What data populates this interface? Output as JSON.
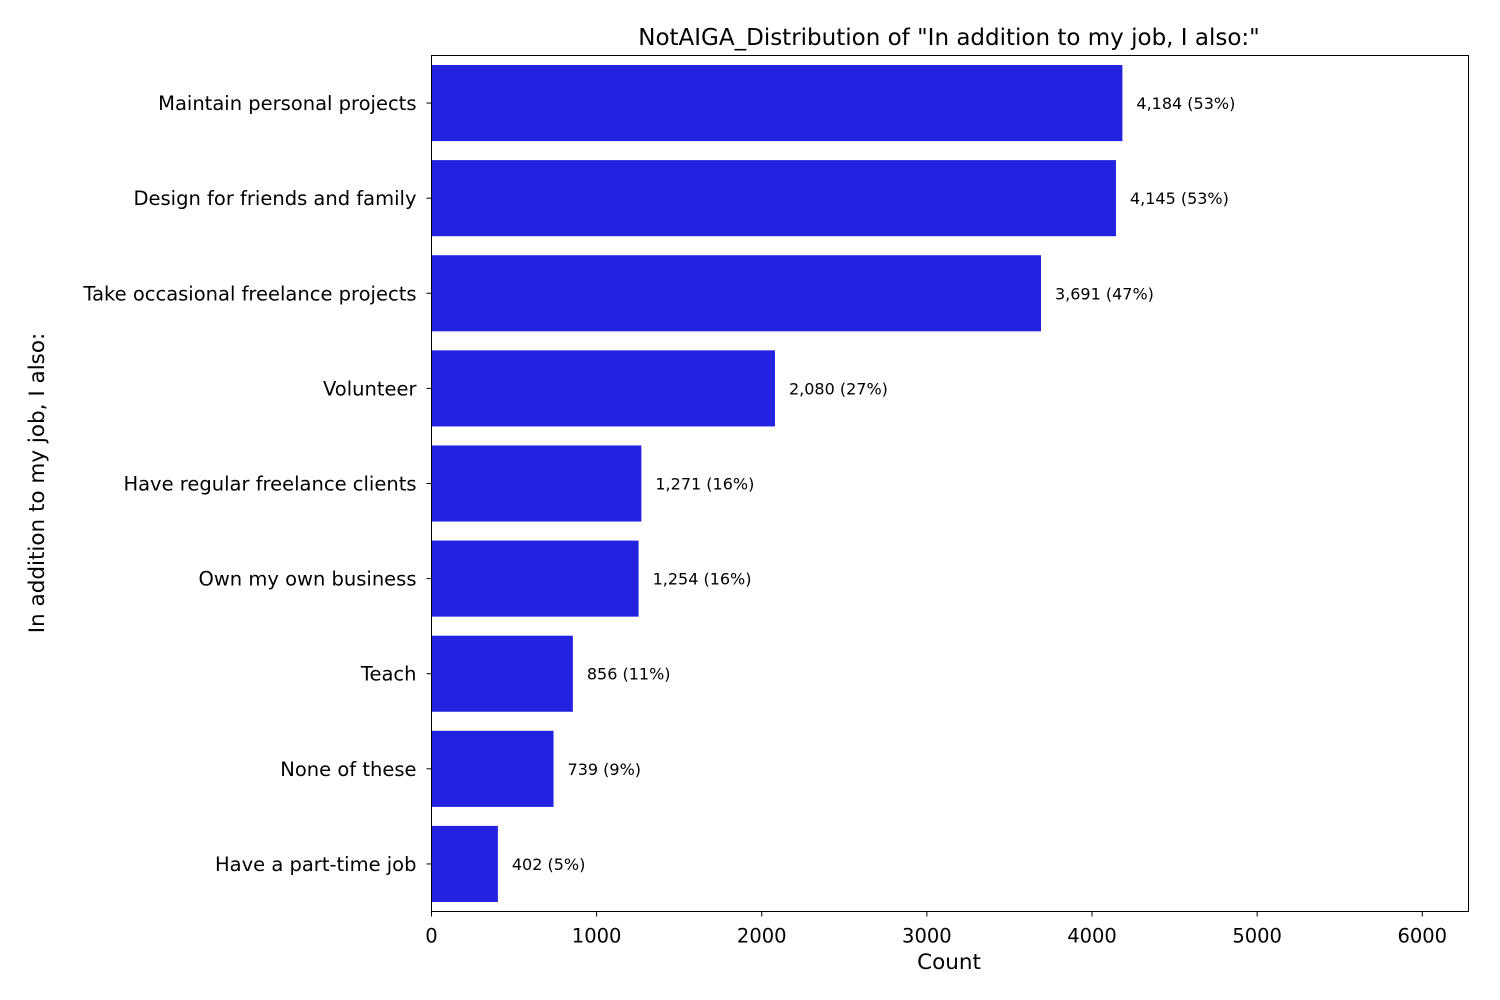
{
  "chart_data": {
    "type": "bar",
    "orientation": "horizontal",
    "title": "NotAIGA_Distribution of \"In addition to my job, I also:\"",
    "xlabel": "Count",
    "ylabel": "In addition to my job, I also:",
    "xlim": [
      0,
      6280
    ],
    "xticks": [
      0,
      1000,
      2000,
      3000,
      4000,
      5000,
      6000
    ],
    "grid": false,
    "bar_color": "#2222e0",
    "categories": [
      "Maintain personal projects",
      "Design for friends and family",
      "Take occasional freelance projects",
      "Volunteer",
      "Have regular freelance clients",
      "Own my own business",
      "Teach",
      "None of these",
      "Have a part-time job"
    ],
    "values": [
      4184,
      4145,
      3691,
      2080,
      1271,
      1254,
      856,
      739,
      402
    ],
    "data_labels": [
      "4,184 (53%)",
      "4,145 (53%)",
      "3,691 (47%)",
      "2,080 (27%)",
      "1,271 (16%)",
      "1,254 (16%)",
      "856 (11%)",
      "739 (9%)",
      "402 (5%)"
    ]
  }
}
